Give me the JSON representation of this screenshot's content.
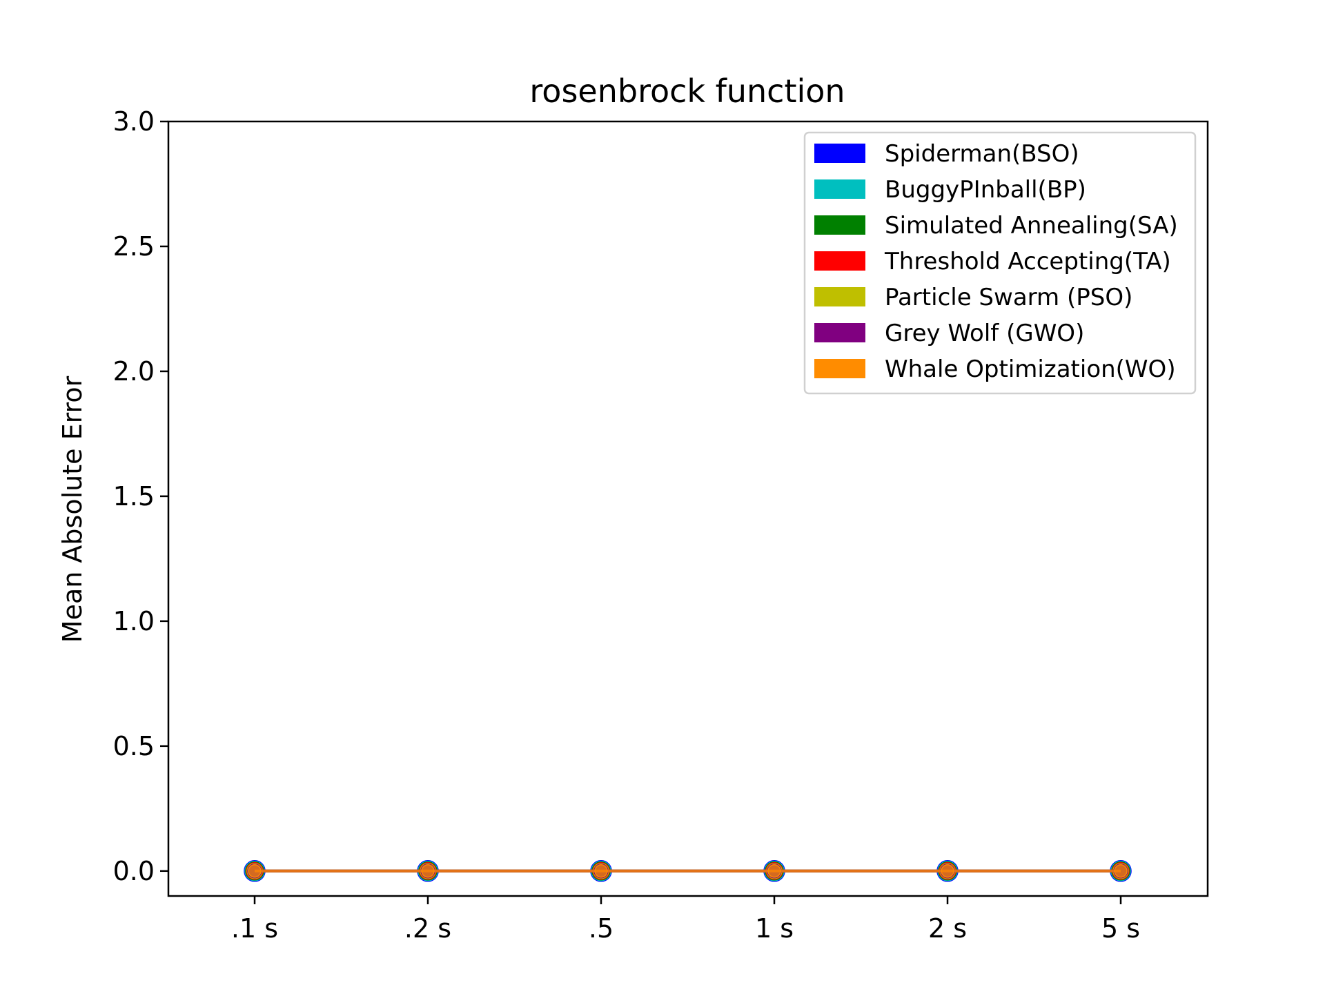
{
  "chart_data": {
    "type": "line",
    "title": "rosenbrock function",
    "xlabel": "",
    "ylabel": "Mean Absolute Error",
    "categories": [
      ".1 s",
      ".2 s",
      ".5",
      "1 s",
      "2 s",
      "5 s"
    ],
    "ylim": [
      -0.1,
      3.0
    ],
    "yticks": [
      "0.0",
      "0.5",
      "1.0",
      "1.5",
      "2.0",
      "2.5",
      "3.0"
    ],
    "ytick_values": [
      0.0,
      0.5,
      1.0,
      1.5,
      2.0,
      2.5,
      3.0
    ],
    "grid": false,
    "legend_position": "top-right",
    "series": [
      {
        "name": "Spiderman(BSO)",
        "color": "#0000ff",
        "values": [
          0,
          0,
          0,
          0,
          0,
          0
        ]
      },
      {
        "name": "BuggyPInball(BP)",
        "color": "#00bfbf",
        "values": [
          0,
          0,
          0,
          0,
          0,
          0
        ]
      },
      {
        "name": "Simulated Annealing(SA)",
        "color": "#008000",
        "values": [
          0,
          0,
          0,
          0,
          0,
          0
        ]
      },
      {
        "name": "Threshold Accepting(TA)",
        "color": "#ff0000",
        "values": [
          0,
          0,
          0,
          0,
          0,
          0
        ]
      },
      {
        "name": "Particle Swarm (PSO)",
        "color": "#bfbf00",
        "values": [
          0,
          0,
          0,
          0,
          0,
          0
        ]
      },
      {
        "name": "Grey Wolf (GWO)",
        "color": "#800080",
        "values": [
          0,
          0,
          0,
          0,
          0,
          0
        ]
      },
      {
        "name": "Whale Optimization(WO)",
        "color": "#ff8c00",
        "values": [
          0,
          0,
          0,
          0,
          0,
          0
        ]
      }
    ]
  }
}
